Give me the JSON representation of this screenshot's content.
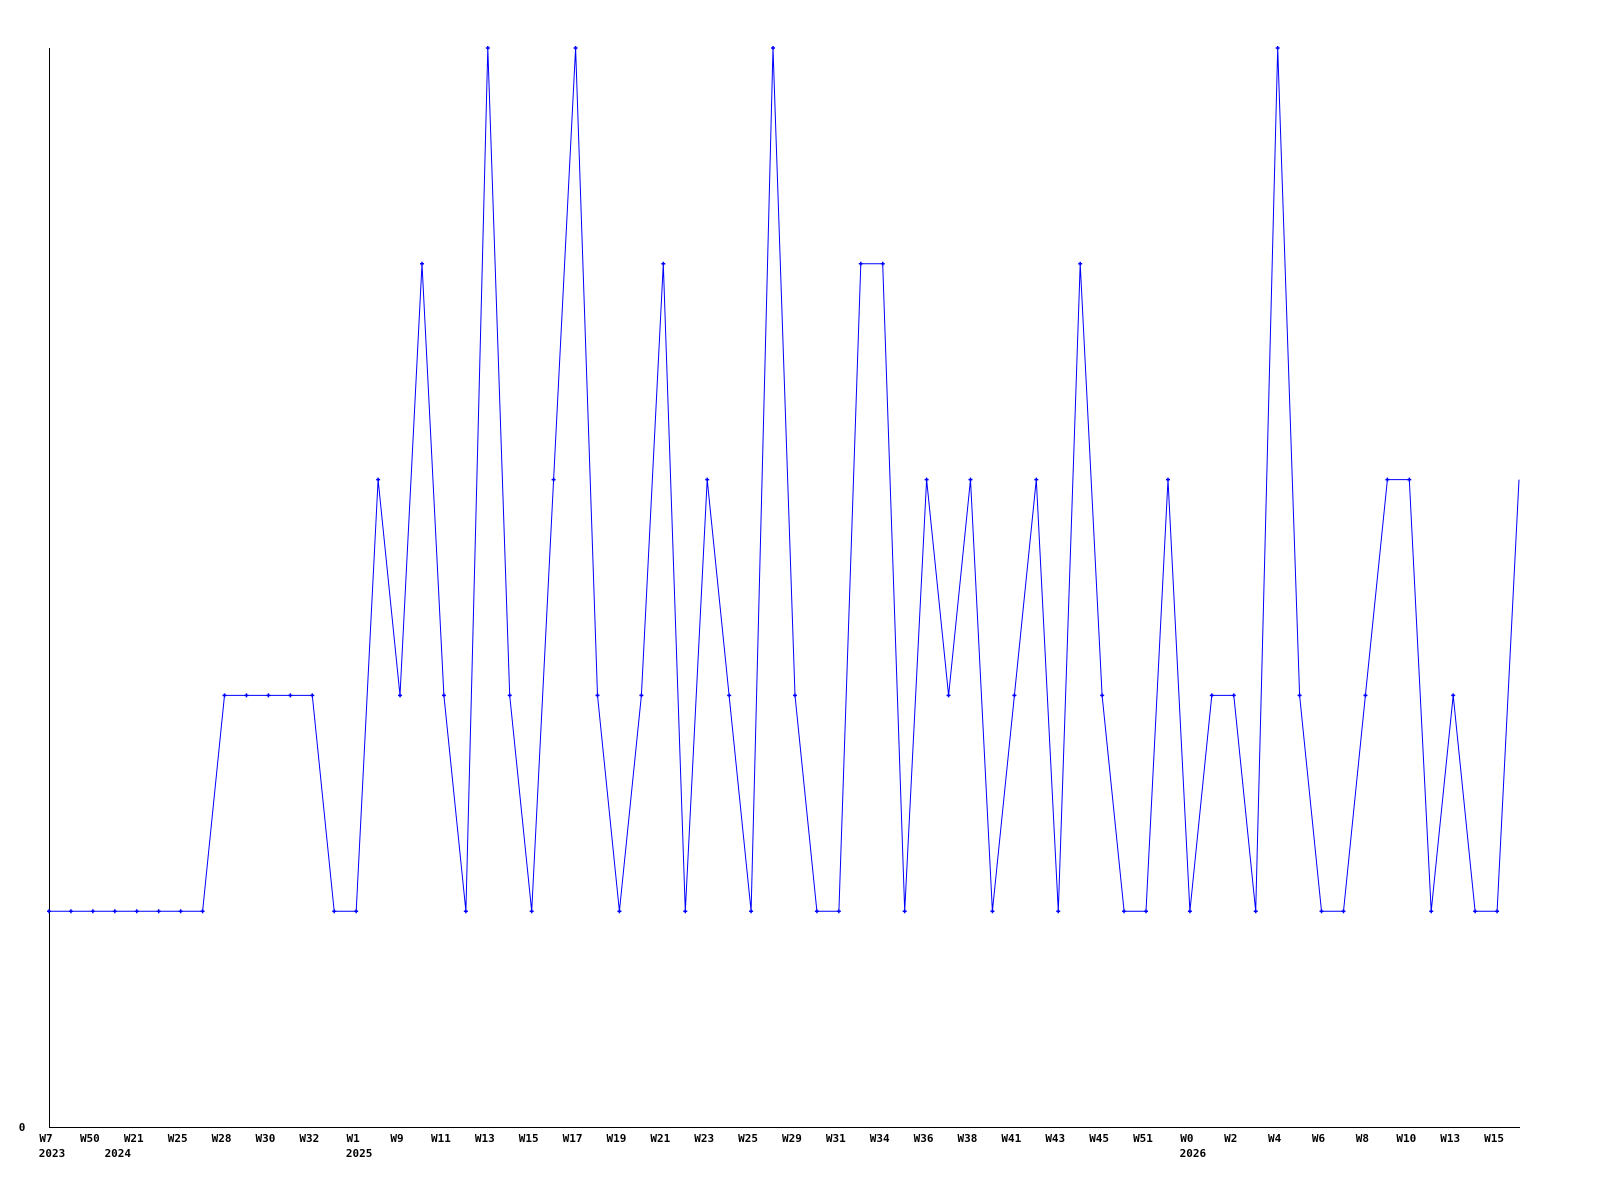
{
  "chart_data": {
    "type": "line",
    "title": "",
    "xlabel": "",
    "ylabel": "",
    "ylim": [
      0,
      5
    ],
    "y_tick_labels": [
      "0"
    ],
    "grid": false,
    "line_color": "#0000ff",
    "values": [
      1,
      1,
      1,
      1,
      1,
      1,
      1,
      1,
      2,
      2,
      2,
      2,
      2,
      1,
      1,
      3,
      2,
      4,
      2,
      1,
      5,
      2,
      1,
      3,
      5,
      2,
      1,
      2,
      4,
      1,
      3,
      2,
      1,
      5,
      2,
      1,
      1,
      4,
      4,
      1,
      3,
      2,
      3,
      1,
      2,
      3,
      1,
      4,
      2,
      1,
      1,
      3,
      1,
      2,
      2,
      1,
      5,
      2,
      1,
      1,
      2,
      3,
      3,
      1,
      2,
      1,
      1,
      3
    ],
    "x_ticks": [
      {
        "index": 0,
        "label": "W7"
      },
      {
        "index": 2,
        "label": "W50"
      },
      {
        "index": 4,
        "label": "W21"
      },
      {
        "index": 6,
        "label": "W25"
      },
      {
        "index": 8,
        "label": "W28"
      },
      {
        "index": 10,
        "label": "W30"
      },
      {
        "index": 12,
        "label": "W32"
      },
      {
        "index": 14,
        "label": "W1"
      },
      {
        "index": 16,
        "label": "W9"
      },
      {
        "index": 18,
        "label": "W11"
      },
      {
        "index": 20,
        "label": "W13"
      },
      {
        "index": 22,
        "label": "W15"
      },
      {
        "index": 24,
        "label": "W17"
      },
      {
        "index": 26,
        "label": "W19"
      },
      {
        "index": 28,
        "label": "W21"
      },
      {
        "index": 30,
        "label": "W23"
      },
      {
        "index": 32,
        "label": "W25"
      },
      {
        "index": 34,
        "label": "W29"
      },
      {
        "index": 36,
        "label": "W31"
      },
      {
        "index": 38,
        "label": "W34"
      },
      {
        "index": 40,
        "label": "W36"
      },
      {
        "index": 42,
        "label": "W38"
      },
      {
        "index": 44,
        "label": "W41"
      },
      {
        "index": 46,
        "label": "W43"
      },
      {
        "index": 48,
        "label": "W45"
      },
      {
        "index": 50,
        "label": "W51"
      },
      {
        "index": 52,
        "label": "W0"
      },
      {
        "index": 54,
        "label": "W2"
      },
      {
        "index": 56,
        "label": "W4"
      },
      {
        "index": 58,
        "label": "W6"
      },
      {
        "index": 60,
        "label": "W8"
      },
      {
        "index": 62,
        "label": "W10"
      },
      {
        "index": 64,
        "label": "W13"
      },
      {
        "index": 66,
        "label": "W15"
      }
    ],
    "year_labels": [
      {
        "index": 0,
        "label": "2023"
      },
      {
        "index": 3,
        "label": "2024"
      },
      {
        "index": 14,
        "label": "2025"
      },
      {
        "index": 52,
        "label": "2026"
      }
    ]
  }
}
